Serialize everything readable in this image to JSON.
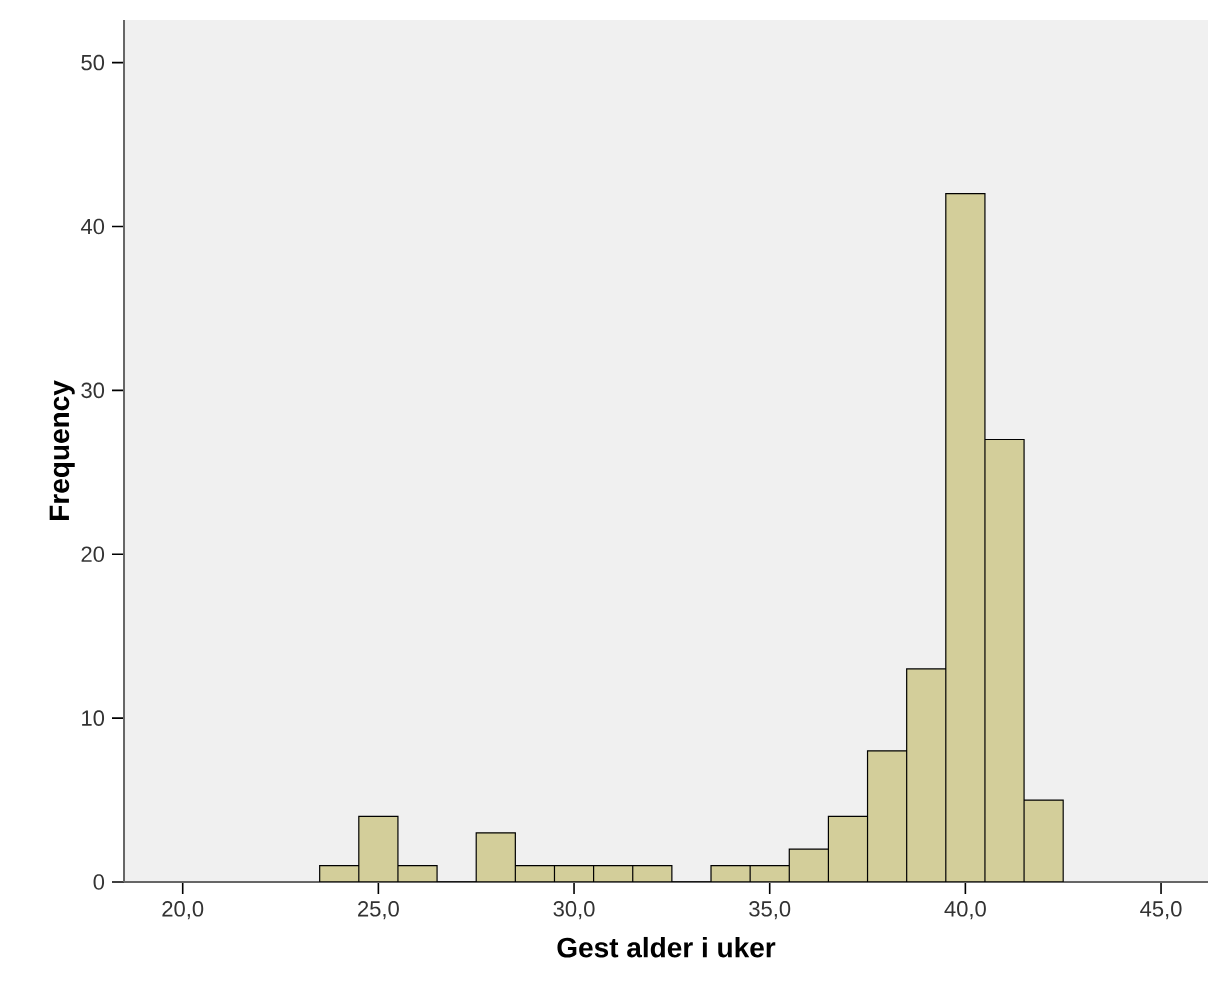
{
  "chart_data": {
    "type": "histogram",
    "xlabel": "Gest alder i uker",
    "ylabel": "Frequency",
    "bins": [
      23.5,
      24.5,
      25.5,
      26.5,
      27.5,
      28.5,
      29.5,
      30.5,
      31.5,
      32.5,
      33.5,
      34.5,
      35.5,
      36.5,
      37.5,
      38.5,
      39.5,
      40.5,
      41.5,
      42.5
    ],
    "values": [
      1,
      4,
      1,
      0,
      3,
      1,
      1,
      1,
      1,
      0,
      1,
      1,
      2,
      4,
      8,
      13,
      42,
      27,
      5
    ],
    "color": "#d3ce9a",
    "xlim": [
      18.5,
      46.2
    ],
    "ylim": [
      0,
      52.6
    ],
    "xticks": [
      {
        "value": 20,
        "label": "20,0"
      },
      {
        "value": 25,
        "label": "25,0"
      },
      {
        "value": 30,
        "label": "30,0"
      },
      {
        "value": 35,
        "label": "35,0"
      },
      {
        "value": 40,
        "label": "40,0"
      },
      {
        "value": 45,
        "label": "45,0"
      }
    ],
    "yticks": [
      0,
      10,
      20,
      30,
      40,
      50
    ]
  }
}
